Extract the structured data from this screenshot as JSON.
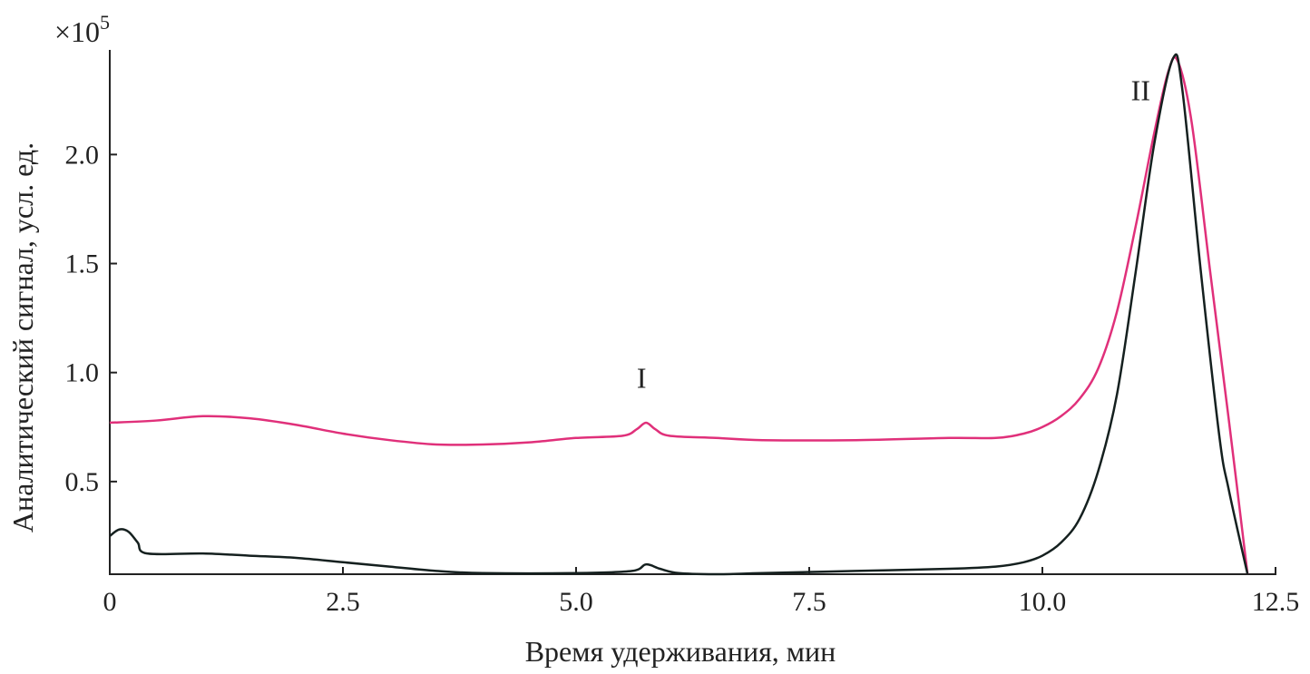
{
  "chart_data": {
    "type": "line",
    "title": "",
    "xlabel": "Время удерживания, мин",
    "ylabel": "Аналитический сигнал, усл. ед.",
    "y_multiplier": "×10",
    "y_multiplier_exp": "5",
    "xlim": [
      0,
      12.5
    ],
    "ylim": [
      0.075,
      2.48
    ],
    "x_ticks": [
      "0",
      "2.5",
      "5.0",
      "7.5",
      "10.0",
      "12.5"
    ],
    "x_tick_values": [
      0,
      2.5,
      5.0,
      7.5,
      10.0,
      12.5
    ],
    "y_ticks": [
      "0.5",
      "1.0",
      "1.5",
      "2.0"
    ],
    "y_tick_values": [
      0.5,
      1.0,
      1.5,
      2.0
    ],
    "grid": false,
    "annotations": [
      {
        "text": "I",
        "x": 5.65,
        "y": 0.93
      },
      {
        "text": "II",
        "x": 10.95,
        "y": 2.25
      }
    ],
    "series": [
      {
        "color": "#e0307a",
        "x": [
          0,
          0.5,
          1.0,
          1.5,
          2.0,
          2.5,
          3.0,
          3.5,
          4.0,
          4.5,
          5.0,
          5.5,
          5.65,
          5.75,
          5.85,
          6.0,
          6.5,
          7.0,
          8.0,
          9.0,
          9.5,
          9.8,
          10.0,
          10.2,
          10.4,
          10.6,
          10.8,
          11.0,
          11.2,
          11.35,
          11.45,
          11.6,
          11.8,
          12.0,
          12.2
        ],
        "y": [
          0.77,
          0.78,
          0.8,
          0.79,
          0.76,
          0.72,
          0.69,
          0.67,
          0.67,
          0.68,
          0.7,
          0.71,
          0.74,
          0.77,
          0.74,
          0.71,
          0.7,
          0.69,
          0.69,
          0.7,
          0.7,
          0.72,
          0.75,
          0.8,
          0.88,
          1.02,
          1.28,
          1.67,
          2.1,
          2.38,
          2.43,
          2.15,
          1.46,
          0.78,
          0.075
        ]
      },
      {
        "color": "#15201f",
        "x": [
          0,
          0.1,
          0.2,
          0.3,
          0.4,
          1.0,
          1.5,
          2.0,
          2.5,
          3.0,
          3.5,
          4.0,
          5.0,
          5.6,
          5.75,
          5.9,
          6.1,
          6.5,
          7.0,
          8.0,
          9.0,
          9.5,
          9.8,
          10.0,
          10.2,
          10.4,
          10.6,
          10.8,
          11.0,
          11.2,
          11.4,
          11.5,
          11.7,
          11.9,
          12.0,
          12.2
        ],
        "y": [
          0.25,
          0.28,
          0.27,
          0.22,
          0.17,
          0.17,
          0.16,
          0.15,
          0.13,
          0.11,
          0.09,
          0.08,
          0.08,
          0.09,
          0.12,
          0.1,
          0.08,
          0.075,
          0.08,
          0.09,
          0.1,
          0.11,
          0.13,
          0.16,
          0.22,
          0.33,
          0.55,
          0.9,
          1.46,
          2.05,
          2.44,
          2.3,
          1.46,
          0.7,
          0.46,
          0.075
        ]
      }
    ]
  }
}
